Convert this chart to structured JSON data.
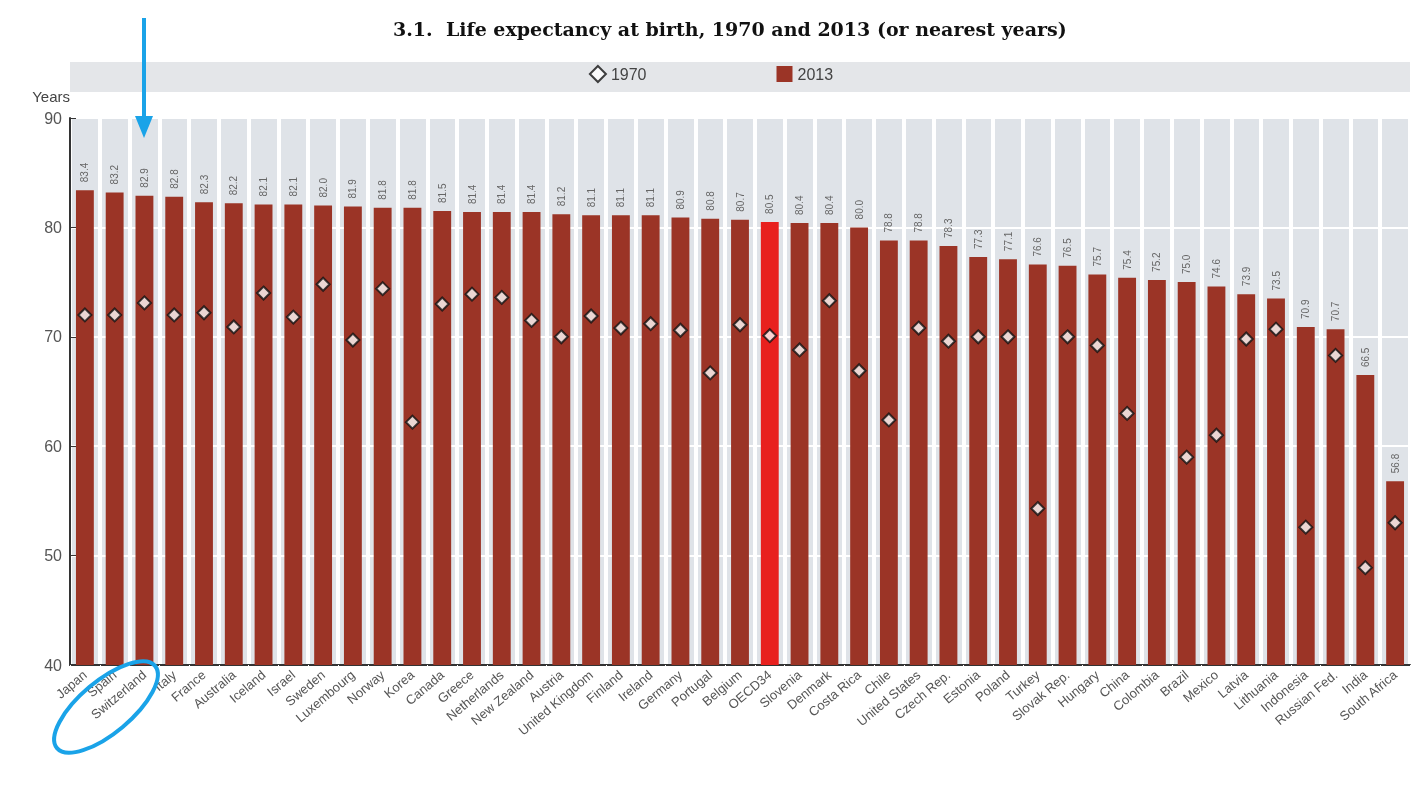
{
  "chart_data": {
    "type": "bar",
    "title": "3.1.  Life expectancy at birth, 1970 and 2013 (or nearest years)",
    "ylabel": "Years",
    "categories": [
      "Japan",
      "Spain",
      "Switzerland",
      "Italy",
      "France",
      "Australia",
      "Iceland",
      "Israel",
      "Sweden",
      "Luxembourg",
      "Norway",
      "Korea",
      "Canada",
      "Greece",
      "Netherlands",
      "New Zealand",
      "Austria",
      "United Kingdom",
      "Finland",
      "Ireland",
      "Germany",
      "Portugal",
      "Belgium",
      "OECD34",
      "Slovenia",
      "Denmark",
      "Costa Rica",
      "Chile",
      "United States",
      "Czech Rep.",
      "Estonia",
      "Poland",
      "Turkey",
      "Slovak Rep.",
      "Hungary",
      "China",
      "Colombia",
      "Brazil",
      "Mexico",
      "Latvia",
      "Lithuania",
      "Indonesia",
      "Russian Fed.",
      "India",
      "South Africa"
    ],
    "series": [
      {
        "name": "1970",
        "type": "scatter",
        "color": "#ffffff",
        "values": [
          72.0,
          72.0,
          73.1,
          72.0,
          72.2,
          70.9,
          74.0,
          71.8,
          74.8,
          69.7,
          74.4,
          62.2,
          73.0,
          73.9,
          73.6,
          71.5,
          70.0,
          71.9,
          70.8,
          71.2,
          70.6,
          66.7,
          71.1,
          70.1,
          68.8,
          73.3,
          66.9,
          62.4,
          70.8,
          69.6,
          70.0,
          70.0,
          54.3,
          70.0,
          69.2,
          63.0,
          null,
          59.0,
          61.0,
          69.8,
          70.7,
          52.6,
          68.3,
          48.9,
          53.0
        ]
      },
      {
        "name": "2013",
        "color": "#9b3426",
        "colors": [
          "#9b3426",
          "#9b3426",
          "#9b3426",
          "#9b3426",
          "#9b3426",
          "#9b3426",
          "#9b3426",
          "#9b3426",
          "#9b3426",
          "#9b3426",
          "#9b3426",
          "#9b3426",
          "#9b3426",
          "#9b3426",
          "#9b3426",
          "#9b3426",
          "#9b3426",
          "#9b3426",
          "#9b3426",
          "#9b3426",
          "#9b3426",
          "#9b3426",
          "#9b3426",
          "#e8201e",
          "#9b3426",
          "#9b3426",
          "#9b3426",
          "#9b3426",
          "#9b3426",
          "#9b3426",
          "#9b3426",
          "#9b3426",
          "#9b3426",
          "#9b3426",
          "#9b3426",
          "#9b3426",
          "#9b3426",
          "#9b3426",
          "#9b3426",
          "#9b3426",
          "#9b3426",
          "#9b3426",
          "#9b3426",
          "#9b3426",
          "#9b3426"
        ],
        "values": [
          83.4,
          83.2,
          82.9,
          82.8,
          82.3,
          82.2,
          82.1,
          82.1,
          82.0,
          81.9,
          81.8,
          81.8,
          81.5,
          81.4,
          81.4,
          81.4,
          81.2,
          81.1,
          81.1,
          81.1,
          80.9,
          80.8,
          80.7,
          80.5,
          80.4,
          80.4,
          80.0,
          78.8,
          78.8,
          78.3,
          77.3,
          77.1,
          76.6,
          76.5,
          75.7,
          75.4,
          75.2,
          75.0,
          74.6,
          73.9,
          73.5,
          70.9,
          70.7,
          66.5,
          56.8
        ],
        "value_labels": [
          "83.4",
          "83.2",
          "82.9",
          "82.8",
          "82.3",
          "82.2",
          "82.1",
          "82.1",
          "82.0",
          "81.9",
          "81.8",
          "81.8",
          "81.5",
          "81.4",
          "81.4",
          "81.4",
          "81.2",
          "81.1",
          "81.1",
          "81.1",
          "80.9",
          "80.8",
          "80.7",
          "80.5",
          "80.4",
          "80.4",
          "80.0",
          "78.8",
          "78.8",
          "78.3",
          "77.3",
          "77.1",
          "76.6",
          "76.5",
          "75.7",
          "75.4",
          "75.2",
          "75.0",
          "74.6",
          "73.9",
          "73.5",
          "70.9",
          "70.7",
          "66.5",
          "56.8"
        ]
      }
    ],
    "ylim": [
      40,
      90
    ],
    "yticks": [
      40,
      50,
      60,
      70,
      80,
      90
    ],
    "grid": "y",
    "legend": "top",
    "marker": "diamond"
  }
}
